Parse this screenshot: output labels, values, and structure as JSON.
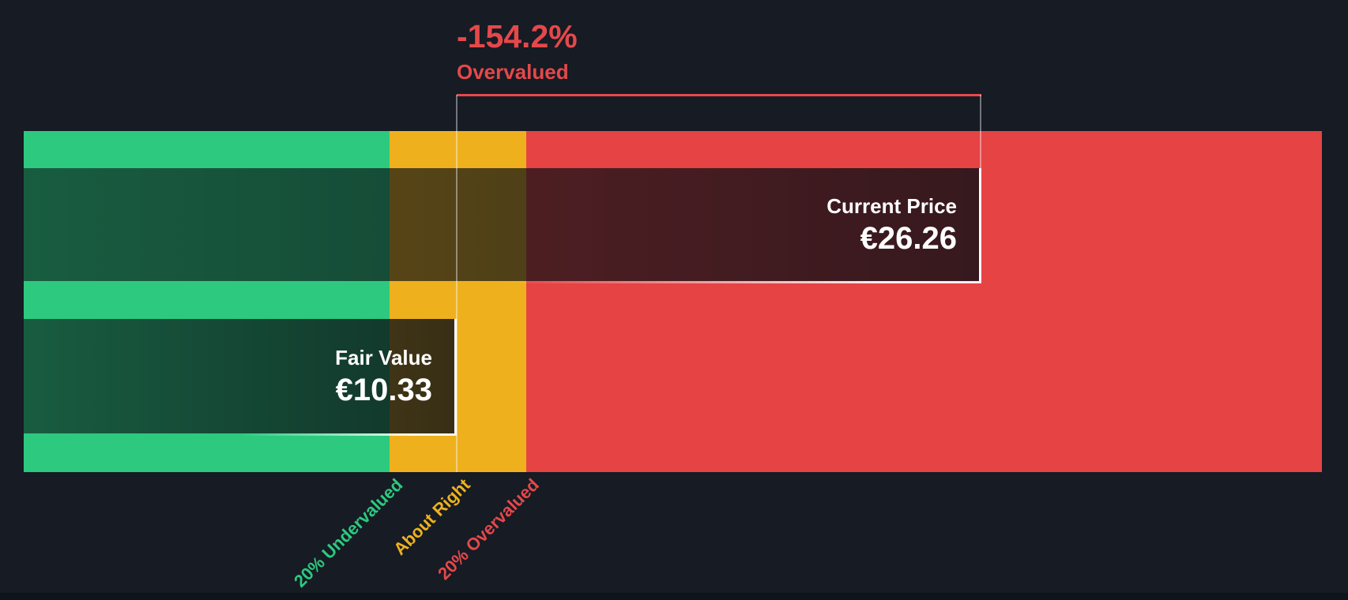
{
  "colors": {
    "background": "#161b24",
    "background_bottom_strip": "#0f141b",
    "zone_green": "#2dc97e",
    "zone_yellow": "#eeb11d",
    "zone_red": "#e54344",
    "annotation_red": "#e5484a",
    "bar_text_white": "#ffffff"
  },
  "annotation": {
    "value": "-154.2%",
    "label": "Overvalued"
  },
  "bars": {
    "current_price": {
      "label": "Current Price",
      "value": "€26.26"
    },
    "fair_value": {
      "label": "Fair Value",
      "value": "€10.33"
    }
  },
  "axis": {
    "undervalued": "20% Undervalued",
    "about_right": "About Right",
    "overvalued": "20% Overvalued"
  },
  "chart_data": {
    "type": "bar",
    "orientation": "horizontal",
    "series": [
      {
        "name": "Current Price",
        "value": 26.26,
        "label": "€26.26"
      },
      {
        "name": "Fair Value",
        "value": 10.33,
        "label": "€10.33"
      }
    ],
    "currency": "EUR",
    "zones": [
      {
        "label": "20% Undervalued",
        "color": "#2dc97e"
      },
      {
        "label": "About Right",
        "color": "#eeb11d"
      },
      {
        "label": "20% Overvalued",
        "color": "#e54344"
      }
    ],
    "annotation": {
      "value_pct": -154.2,
      "text": "-154.2%",
      "label": "Overvalued"
    },
    "legend": "none",
    "grid": false,
    "notes": "Fair value gauge: dark overlay bars for current price and fair value over green/yellow/red valuation zones; red bracket spans from fair value marker to current price edge."
  }
}
